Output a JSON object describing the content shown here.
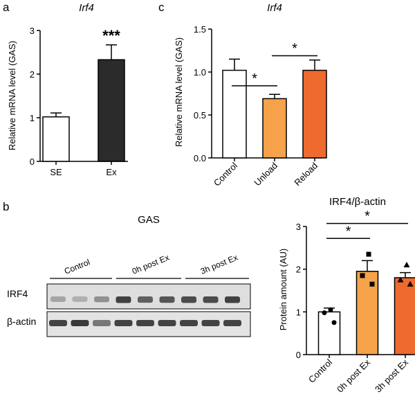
{
  "panel_labels": {
    "a": "a",
    "b": "b",
    "c": "c"
  },
  "chart_data": [
    {
      "id": "panel-a",
      "type": "bar",
      "title": "Irf4",
      "ylabel": "Relative mRNA level (GAS)",
      "categories": [
        "SE",
        "Ex"
      ],
      "values": [
        1.02,
        2.33
      ],
      "errors": [
        0.09,
        0.34
      ],
      "colors": [
        "#ffffff",
        "#2b2b2b"
      ],
      "ylim": [
        0,
        3
      ],
      "yticks": [
        "0",
        "1",
        "2",
        "3"
      ],
      "significance": [
        {
          "label": "***",
          "bar": 1
        }
      ]
    },
    {
      "id": "panel-c",
      "type": "bar",
      "title": "Irf4",
      "ylabel": "Relative mRNA level (GAS)",
      "categories": [
        "Control",
        "Unload",
        "Reload"
      ],
      "values": [
        1.02,
        0.69,
        1.02
      ],
      "errors": [
        0.13,
        0.05,
        0.12
      ],
      "colors": [
        "#ffffff",
        "#f5a24a",
        "#ee6a2e"
      ],
      "ylim": [
        0,
        1.5
      ],
      "yticks": [
        "0.0",
        "0.5",
        "1.0",
        "1.5"
      ],
      "significance": [
        {
          "label": "*",
          "from": 0,
          "to": 1,
          "level": 0.84
        },
        {
          "label": "*",
          "from": 1,
          "to": 2,
          "level": 1.19
        }
      ]
    },
    {
      "id": "panel-b-quant",
      "type": "bar",
      "title": "IRF4/β-actin",
      "ylabel": "Protein amount (AU)",
      "categories": [
        "Control",
        "0h post Ex",
        "3h post Ex"
      ],
      "values": [
        1.0,
        1.95,
        1.8
      ],
      "errors": [
        0.09,
        0.25,
        0.12
      ],
      "colors": [
        "#ffffff",
        "#f5a24a",
        "#ee6a2e"
      ],
      "points": [
        [
          1.05,
          0.98,
          0.75
        ],
        [
          2.35,
          1.85,
          1.65
        ],
        [
          2.1,
          1.75,
          1.65
        ]
      ],
      "point_shapes": [
        "circle",
        "square",
        "triangle"
      ],
      "ylim": [
        0,
        3
      ],
      "yticks": [
        "0",
        "1",
        "2",
        "3"
      ],
      "significance": [
        {
          "label": "*",
          "from": 0,
          "to": 1,
          "level": 2.72
        },
        {
          "label": "*",
          "from": 0,
          "to": 2,
          "level": 3.07
        }
      ]
    }
  ],
  "blot": {
    "title": "GAS",
    "group_labels": [
      "Control",
      "0h post Ex",
      "3h post Ex"
    ],
    "row_labels": [
      "IRF4",
      "β-actin"
    ],
    "irf4_intensity": [
      0.35,
      0.3,
      0.45,
      0.85,
      0.7,
      0.75,
      0.8,
      0.8,
      0.85
    ],
    "actin_intensity": [
      0.8,
      0.85,
      0.55,
      0.8,
      0.8,
      0.8,
      0.8,
      0.8,
      0.8
    ]
  }
}
